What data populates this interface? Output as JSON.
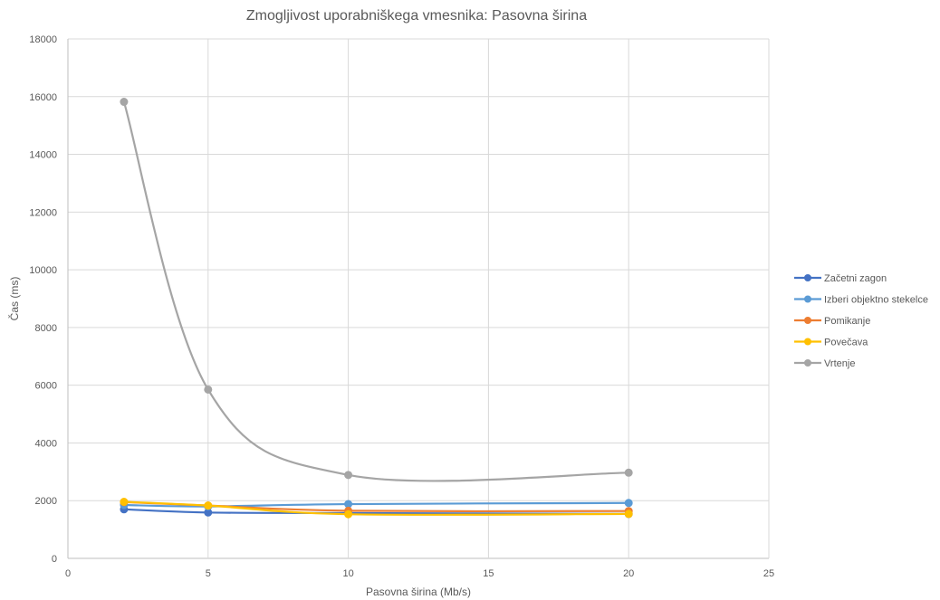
{
  "chart_data": {
    "type": "scatter",
    "title": "Zmogljivost uporabniškega vmesnika: Pasovna širina",
    "xlabel": "Pasovna širina (Mb/s)",
    "ylabel": "Čas (ms)",
    "xlim": [
      0,
      25
    ],
    "ylim": [
      0,
      18000
    ],
    "x_ticks": [
      "0",
      "5",
      "10",
      "15",
      "20",
      "25"
    ],
    "y_ticks": [
      "0",
      "2000",
      "4000",
      "6000",
      "8000",
      "10000",
      "12000",
      "14000",
      "16000",
      "18000"
    ],
    "x_tick_values": [
      0,
      5,
      10,
      15,
      20,
      25
    ],
    "y_tick_values": [
      0,
      2000,
      4000,
      6000,
      8000,
      10000,
      12000,
      14000,
      16000,
      18000
    ],
    "grid": true,
    "smooth": true,
    "legend_position": "right",
    "series": [
      {
        "name": "Začetni zagon",
        "color": "#4472C4",
        "x": [
          2,
          5,
          10,
          20
        ],
        "y": [
          1700,
          1590,
          1570,
          1540
        ]
      },
      {
        "name": "Izberi objektno stekelce",
        "color": "#5B9BD5",
        "x": [
          2,
          5,
          10,
          20
        ],
        "y": [
          1850,
          1800,
          1880,
          1920
        ]
      },
      {
        "name": "Pomikanje",
        "color": "#ED7D31",
        "x": [
          2,
          5,
          10,
          20
        ],
        "y": [
          1950,
          1830,
          1650,
          1640
        ]
      },
      {
        "name": "Povečava",
        "color": "#FFC000",
        "x": [
          2,
          5,
          10,
          20
        ],
        "y": [
          1960,
          1830,
          1530,
          1540
        ]
      },
      {
        "name": "Vrtenje",
        "color": "#A5A5A5",
        "x": [
          2,
          5,
          10,
          20
        ],
        "y": [
          15820,
          5850,
          2890,
          2970
        ]
      }
    ]
  }
}
